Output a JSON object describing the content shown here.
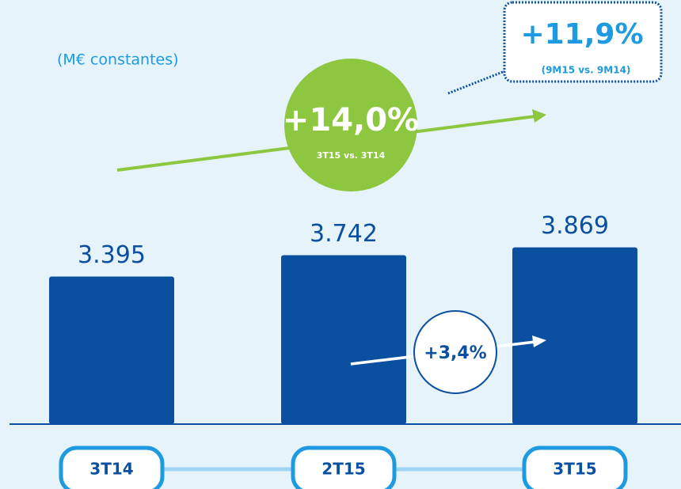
{
  "chart_data": {
    "type": "bar",
    "subtitle": "(M€ constantes)",
    "categories": [
      "3T14",
      "2T15",
      "3T15"
    ],
    "values": [
      3395,
      3742,
      3869
    ],
    "value_labels": [
      "3.395",
      "3.742",
      "3.869"
    ],
    "color": "#0b4fa0",
    "ylim": [
      1000,
      6600
    ],
    "annotations": [
      "+14,0%",
      "3T15 vs. 3T14",
      "+11,9%",
      "(9M15 vs. 9M14)",
      "+3,4%"
    ]
  }
}
